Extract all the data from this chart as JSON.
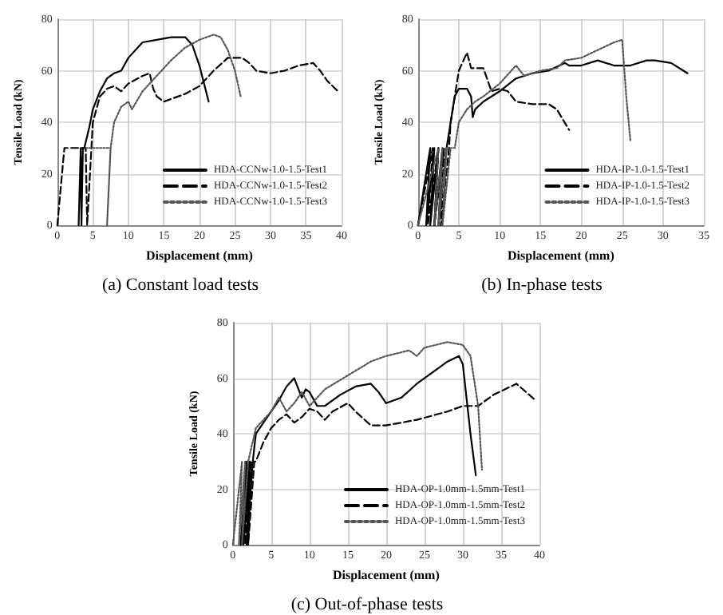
{
  "chart_data": [
    {
      "type": "line",
      "xlabel": "Displacement (mm)",
      "ylabel": "Tensile Load (kN)",
      "annotations": [
        "(a) Constant load tests"
      ],
      "xlim": [
        0,
        40
      ],
      "xticks": [
        0,
        5,
        10,
        15,
        20,
        25,
        30,
        35,
        40
      ],
      "ylim": [
        0,
        80
      ],
      "yticks": [
        0,
        20,
        40,
        60,
        80
      ],
      "grid": true,
      "legend": "bottom right",
      "marker": "none",
      "series": [
        {
          "name": "HDA-CCNw-1.0-1.5-Test1",
          "color": "#000000",
          "line_style": "solid",
          "x": [
            3,
            3.3,
            3.4,
            3.6,
            3.8,
            4.5,
            5,
            6,
            7,
            8,
            9,
            10,
            12,
            14,
            16,
            18,
            19,
            20,
            21.3
          ],
          "values": [
            0,
            30,
            0,
            30,
            30,
            38,
            45,
            52,
            57,
            59,
            60,
            65,
            71,
            72,
            73,
            73,
            70,
            62,
            48
          ]
        },
        {
          "name": "HDA-CCNw-1.0-1.5-Test2",
          "color": "#000000",
          "line_style": "dashed",
          "x": [
            0,
            1,
            4,
            4.2,
            4.8,
            5,
            6,
            7,
            8,
            9,
            10,
            12,
            13,
            13.5,
            14,
            15,
            16,
            18,
            20,
            21,
            22,
            24,
            26,
            27,
            28,
            30,
            32,
            34,
            36,
            37,
            38,
            39.5
          ],
          "values": [
            0,
            30,
            30,
            0,
            30,
            40,
            50,
            53,
            54,
            52,
            55,
            58,
            59,
            53,
            50,
            48,
            49,
            51,
            54,
            57,
            60,
            65,
            65,
            63,
            60,
            59,
            60,
            62,
            63,
            60,
            56,
            52
          ]
        },
        {
          "name": "HDA-CCNw-1.0-1.5-Test3",
          "color": "#555555",
          "line_style": "dotted",
          "x": [
            4,
            7.5,
            7,
            7.5,
            8,
            9,
            10,
            10.5,
            12,
            14,
            16,
            18,
            20,
            22,
            23,
            24,
            25,
            25.8
          ],
          "values": [
            30,
            30,
            0,
            30,
            40,
            46,
            48,
            45,
            52,
            58,
            64,
            69,
            72,
            74,
            73,
            68,
            60,
            50
          ]
        }
      ]
    },
    {
      "type": "line",
      "xlabel": "Displacement (mm)",
      "ylabel": "Tensile Load (kN)",
      "annotations": [
        "(b) In-phase tests"
      ],
      "xlim": [
        0,
        35
      ],
      "xticks": [
        0,
        5,
        10,
        15,
        20,
        25,
        30,
        35
      ],
      "ylim": [
        0,
        80
      ],
      "yticks": [
        0,
        20,
        40,
        60,
        80
      ],
      "grid": true,
      "legend": "bottom right",
      "marker": "none",
      "series": [
        {
          "name": "HDA-IP-1.0-1.5-Test1",
          "color": "#000000",
          "line_style": "solid",
          "x": [
            0,
            1.5,
            1,
            2,
            1.5,
            2.5,
            2,
            3,
            2.5,
            3.5,
            4,
            4.5,
            5,
            6,
            6.5,
            6.7,
            7,
            8,
            10,
            12,
            14,
            16,
            18,
            18.5,
            20,
            22,
            24,
            26,
            28,
            29,
            31,
            33
          ],
          "values": [
            0,
            30,
            0,
            30,
            0,
            30,
            0,
            30,
            0,
            30,
            40,
            50,
            53,
            53,
            50,
            42,
            45,
            48,
            52,
            57,
            59,
            60,
            63,
            62,
            62,
            64,
            62,
            62,
            64,
            64,
            63,
            59
          ]
        },
        {
          "name": "HDA-IP-1.0-1.5-Test2",
          "color": "#000000",
          "line_style": "dashed",
          "x": [
            0,
            1.8,
            1.2,
            2.5,
            2,
            3.2,
            2.8,
            3.8,
            4,
            5,
            6,
            6.5,
            8,
            9,
            10,
            11,
            12,
            14,
            16,
            17,
            18.5
          ],
          "values": [
            0,
            30,
            0,
            30,
            0,
            30,
            0,
            30,
            40,
            60,
            67,
            61,
            61,
            52,
            53,
            52,
            48,
            47,
            47,
            45,
            37
          ]
        },
        {
          "name": "HDA-IP-1.0-1.5-Test3",
          "color": "#555555",
          "line_style": "dotted",
          "x": [
            0,
            2.5,
            2,
            3,
            2.5,
            3.5,
            3,
            4,
            4.5,
            5,
            6,
            7,
            8,
            10,
            12,
            13,
            15,
            17,
            18,
            20,
            22,
            24,
            25,
            25.5,
            26
          ],
          "values": [
            0,
            30,
            0,
            30,
            0,
            30,
            0,
            30,
            30,
            40,
            45,
            48,
            50,
            55,
            62,
            58,
            60,
            61,
            64,
            65,
            68,
            71,
            72,
            50,
            33
          ]
        }
      ]
    },
    {
      "type": "line",
      "xlabel": "Displacement (mm)",
      "ylabel": "Tensile Load (kN)",
      "annotations": [
        "(c) Out-of-phase tests"
      ],
      "xlim": [
        0,
        40
      ],
      "xticks": [
        0,
        5,
        10,
        15,
        20,
        25,
        30,
        35,
        40
      ],
      "ylim": [
        0,
        80
      ],
      "yticks": [
        0,
        20,
        40,
        60,
        80
      ],
      "grid": true,
      "legend": "bottom right",
      "marker": "none",
      "series": [
        {
          "name": "HDA-OP-1.0mm-1.5mm-Test1",
          "color": "#000000",
          "line_style": "solid",
          "x": [
            1,
            1.8,
            1.4,
            2.2,
            1.8,
            2.6,
            3,
            4,
            5,
            6,
            7,
            8,
            9,
            9.5,
            10,
            11,
            12,
            14,
            16,
            18,
            19,
            20,
            22,
            24,
            26,
            28,
            29.5,
            30,
            31,
            31.7
          ],
          "values": [
            0,
            30,
            0,
            30,
            0,
            30,
            40,
            44,
            48,
            52,
            57,
            60,
            53,
            56,
            55,
            50,
            50,
            54,
            57,
            58,
            55,
            51,
            53,
            58,
            62,
            66,
            68,
            65,
            40,
            25
          ]
        },
        {
          "name": "HDA-OP-1.0mm-1.5mm-Test2",
          "color": "#000000",
          "line_style": "dashed",
          "x": [
            1.2,
            2,
            1.6,
            2.4,
            2,
            2.8,
            3,
            4,
            5,
            6,
            7,
            8,
            9,
            10,
            11,
            12,
            13,
            15,
            16,
            18,
            20,
            24,
            28,
            30,
            32,
            34,
            37,
            39.5
          ],
          "values": [
            0,
            30,
            0,
            30,
            0,
            30,
            30,
            37,
            42,
            45,
            47,
            44,
            46,
            49,
            48,
            45,
            48,
            51,
            48,
            43,
            43,
            45,
            48,
            50,
            50,
            54,
            58,
            52
          ]
        },
        {
          "name": "HDA-OP-1.0mm-1.5mm-Test3",
          "color": "#555555",
          "line_style": "dotted",
          "x": [
            0,
            1.2,
            0.8,
            1.6,
            1.2,
            2,
            3,
            5,
            6,
            7,
            8,
            9,
            10,
            12,
            15,
            18,
            20,
            23,
            24,
            25,
            28,
            30,
            31,
            32,
            32.5
          ],
          "values": [
            0,
            30,
            0,
            30,
            0,
            30,
            42,
            48,
            53,
            48,
            51,
            55,
            50,
            56,
            61,
            66,
            68,
            70,
            68,
            71,
            73,
            72,
            68,
            50,
            27
          ]
        }
      ]
    }
  ]
}
